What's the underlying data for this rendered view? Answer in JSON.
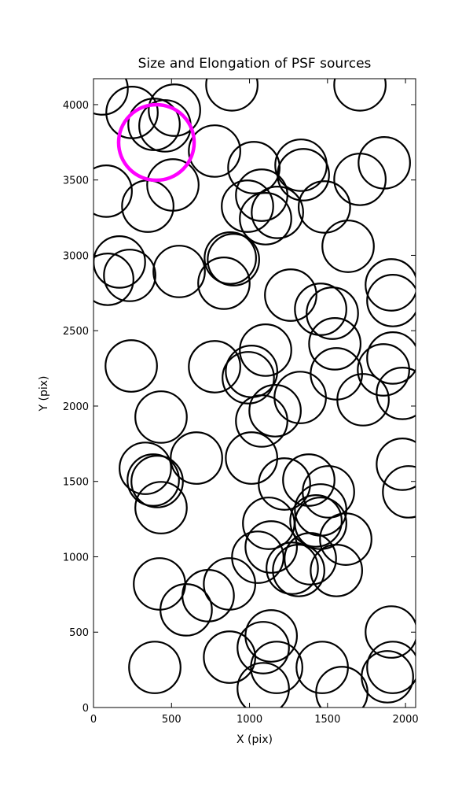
{
  "chart_data": {
    "type": "ellipses",
    "title": "Size and Elongation of PSF sources",
    "x_label": "X (pix)",
    "y_label": "Y (pix)",
    "xlim": [
      0,
      2065
    ],
    "ylim": [
      0,
      4172
    ],
    "xticks": [
      0,
      500,
      1000,
      1500,
      2000
    ],
    "yticks": [
      0,
      500,
      1000,
      1500,
      2000,
      2500,
      3000,
      3500,
      4000
    ],
    "color": "#000000",
    "marker_radius": 165,
    "x": [
      55,
      247,
      388,
      519,
      458,
      887,
      1708,
      776,
      81,
      348,
      509,
      1028,
      1078,
      987,
      1103,
      1330,
      1345,
      1179,
      1480,
      1708,
      1864,
      1632,
      166,
      232,
      91,
      549,
      877,
      897,
      836,
      1264,
      1456,
      1531,
      1909,
      1919,
      1547,
      1919,
      1103,
      242,
      776,
      1013,
      992,
      1557,
      1859,
      1728,
      1325,
      1980,
      433,
      1164,
      1078,
      660,
      1013,
      332,
      383,
      408,
      433,
      1224,
      1380,
      1506,
      1980,
      2020,
      1456,
      1123,
      1426,
      1456,
      1617,
      1139,
      1053,
      1390,
      1274,
      1315,
      1557,
      423,
      872,
      735,
      594,
      1139,
      1088,
      1909,
      872,
      1174,
      1466,
      393,
      1919,
      1884,
      1088,
      1592
    ],
    "y": [
      4104,
      3948,
      3869,
      3963,
      3859,
      4131,
      4131,
      3692,
      3426,
      3326,
      3467,
      3582,
      3399,
      3326,
      3243,
      3598,
      3535,
      3285,
      3321,
      3504,
      3614,
      3060,
      2956,
      2867,
      2841,
      2893,
      2982,
      2971,
      2815,
      2736,
      2642,
      2616,
      2804,
      2700,
      2413,
      2319,
      2371,
      2266,
      2261,
      2230,
      2188,
      2214,
      2240,
      2042,
      2057,
      2084,
      1927,
      1969,
      1901,
      1655,
      1655,
      1587,
      1509,
      1499,
      1326,
      1483,
      1509,
      1431,
      1614,
      1431,
      1311,
      1222,
      1238,
      1222,
      1117,
      1065,
      997,
      987,
      924,
      909,
      909,
      820,
      820,
      742,
      648,
      475,
      397,
      501,
      334,
      266,
      266,
      266,
      266,
      204,
      125,
      99
    ],
    "highlight": {
      "x": 403,
      "y": 3749,
      "radius": 242,
      "color": "#ff00ff"
    }
  }
}
